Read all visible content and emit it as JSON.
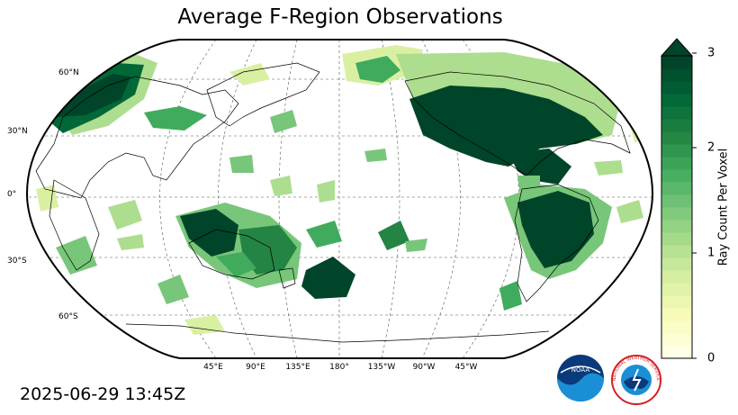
{
  "title": "Average F-Region Observations",
  "timestamp": "2025-06-29 13:45Z",
  "lat_labels": [
    "60°N",
    "30°N",
    "0°",
    "30°S",
    "60°S"
  ],
  "lon_labels": [
    "45°E",
    "90°E",
    "135°E",
    "180°",
    "135°W",
    "90°W",
    "45°W"
  ],
  "colorbar": {
    "label": "Ray Count Per Voxel",
    "ticks": [
      "0",
      "1",
      "2",
      "3"
    ],
    "min": 0,
    "max": 3,
    "extend": "max",
    "colors": [
      "#ffffe5",
      "#f7fcb9",
      "#d9f0a3",
      "#addd8e",
      "#78c679",
      "#41ab5d",
      "#238443",
      "#006837",
      "#004529"
    ]
  },
  "logos": {
    "noaa": "NOAA",
    "nws": "NATIONAL WEATHER SERVICE"
  },
  "map": {
    "projection": "Robinson, centered 180°",
    "graticule": "dashed"
  }
}
